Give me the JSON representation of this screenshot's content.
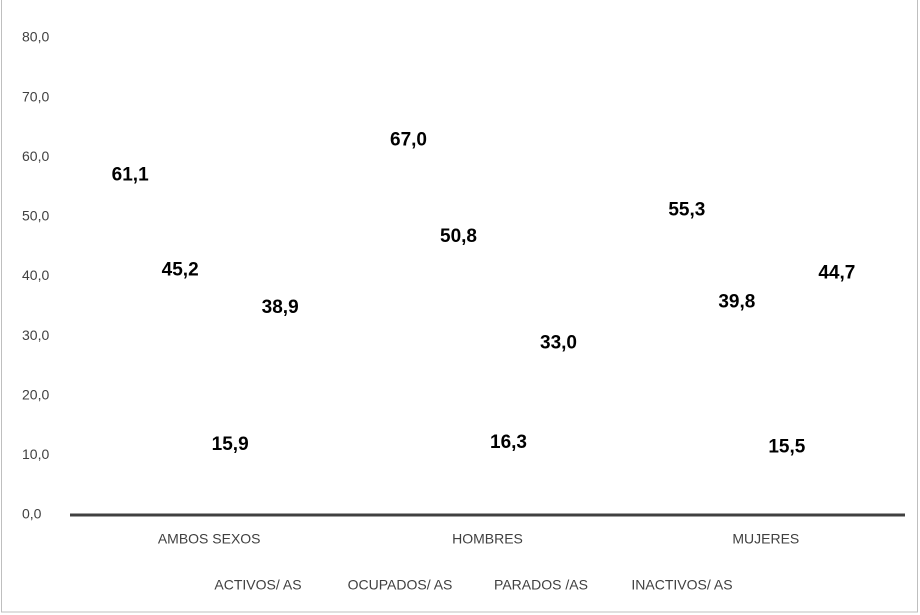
{
  "chart_data": {
    "type": "bar",
    "categories": [
      "AMBOS SEXOS",
      "HOMBRES",
      "MUJERES"
    ],
    "series": [
      {
        "name": "ACTIVOS/ AS",
        "color": "none",
        "values": [
          61.1,
          67.0,
          55.3
        ],
        "value_labels": [
          "61,1",
          "67,0",
          "55,3"
        ]
      },
      {
        "name": "OCUPADOS/ AS",
        "color": "none",
        "values": [
          45.2,
          50.8,
          39.8
        ],
        "value_labels": [
          "45,2",
          "50,8",
          "39,8"
        ]
      },
      {
        "name": "PARADOS /AS",
        "color": "none",
        "values": [
          15.9,
          16.3,
          15.5
        ],
        "value_labels": [
          "15,9",
          "16,3",
          "15,5"
        ]
      },
      {
        "name": "INACTIVOS/ AS",
        "color": "none",
        "values": [
          38.9,
          33.0,
          44.7
        ],
        "value_labels": [
          "38,9",
          "33,0",
          "44,7"
        ]
      }
    ],
    "ylim": [
      0,
      80
    ],
    "yticks": [
      {
        "value": 0,
        "label": "0,0"
      },
      {
        "value": 10,
        "label": "10,0"
      },
      {
        "value": 20,
        "label": "20,0"
      },
      {
        "value": 30,
        "label": "30,0"
      },
      {
        "value": 40,
        "label": "40,0"
      },
      {
        "value": 50,
        "label": "50,0"
      },
      {
        "value": 60,
        "label": "60,0"
      },
      {
        "value": 70,
        "label": "70,0"
      },
      {
        "value": 80,
        "label": "80,0"
      }
    ],
    "grid": false,
    "legend": "bottom"
  }
}
